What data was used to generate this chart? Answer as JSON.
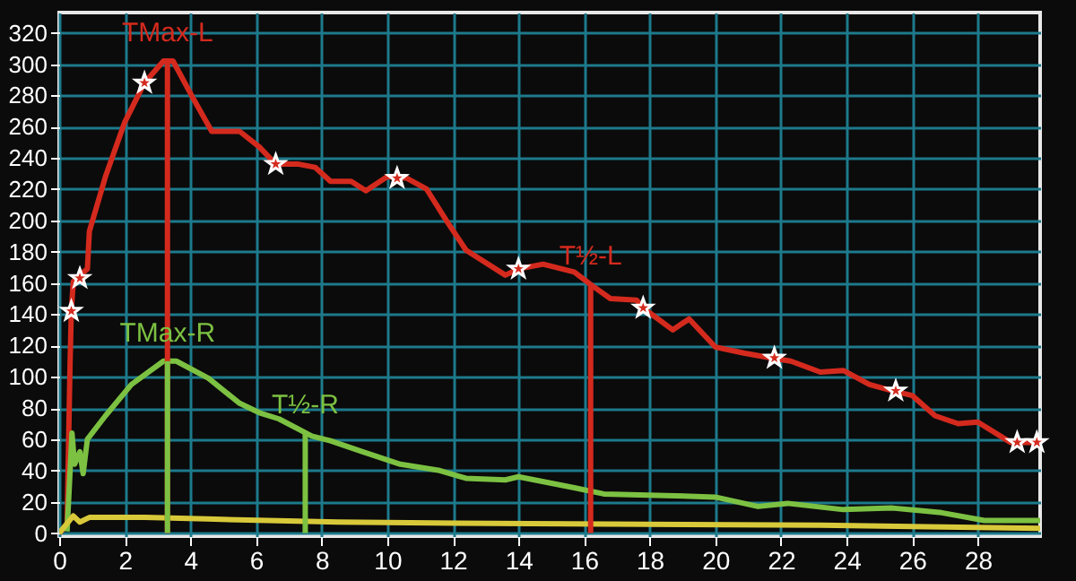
{
  "chart_data": {
    "type": "line",
    "xlim": [
      0,
      29.9
    ],
    "ylim": [
      -2,
      333
    ],
    "xticks": [
      0,
      2,
      4,
      6,
      8,
      10,
      12,
      14,
      16,
      18,
      20,
      22,
      24,
      26,
      28
    ],
    "yticks": [
      0,
      20,
      40,
      60,
      80,
      100,
      120,
      140,
      160,
      180,
      200,
      220,
      240,
      260,
      280,
      300,
      320
    ],
    "grid": true,
    "line_style": "solid",
    "marker": "none",
    "series": [
      {
        "color": "#d42a1e",
        "x": [
          0,
          0.24,
          0.33,
          0.37,
          0.43,
          0.63,
          0.86,
          0.92,
          1.41,
          2,
          2.6,
          3.18,
          3.47,
          4.06,
          4.65,
          5.5,
          6.1,
          6.6,
          7.3,
          7.8,
          8.27,
          8.9,
          9.35,
          10.0,
          10.6,
          11.2,
          11.8,
          12.4,
          13.6,
          14.0,
          14.75,
          15.7,
          16.2,
          16.8,
          17.6,
          17.8,
          18.7,
          19.2,
          20,
          20.9,
          21.7,
          22.3,
          23.2,
          23.9,
          24.7,
          25.4,
          26,
          26.7,
          27.4,
          28,
          29,
          29.8
        ],
        "values": [
          0,
          5,
          107,
          142,
          161,
          165,
          169,
          193,
          228,
          263,
          288,
          302,
          302,
          279,
          257,
          257,
          247,
          236,
          236,
          234,
          225,
          225,
          219,
          228,
          227,
          220,
          200,
          181,
          165,
          169,
          172,
          167,
          159,
          150,
          149,
          144,
          130,
          137,
          119,
          115,
          112,
          110,
          103,
          104,
          95,
          91,
          88,
          75,
          70,
          71,
          58,
          58
        ]
      },
      {
        "color": "#7cc142",
        "x": [
          0.24,
          0.39,
          0.47,
          0.63,
          0.73,
          0.86,
          1.41,
          2.2,
          3.18,
          3.57,
          4.55,
          5.5,
          6.1,
          6.7,
          7.7,
          8.27,
          9.25,
          10.4,
          11.6,
          12.4,
          13.6,
          14.0,
          15.7,
          16.6,
          18.5,
          20,
          21.3,
          22.2,
          23.9,
          25.4,
          26.9,
          28.2,
          29.9
        ],
        "values": [
          1,
          64,
          44,
          52,
          38,
          60,
          75,
          95,
          110,
          110,
          99,
          83,
          77,
          73,
          62,
          59,
          52,
          44,
          40,
          35,
          34,
          36,
          29,
          25,
          24,
          23,
          17,
          19,
          15,
          16,
          13,
          8,
          8
        ]
      },
      {
        "color": "#d8c93a",
        "x": [
          0,
          0.43,
          0.63,
          0.92,
          2.6,
          4.5,
          8.5,
          14.35,
          23.2,
          29.9
        ],
        "values": [
          0,
          11,
          7,
          10,
          10,
          9,
          7,
          6,
          5,
          3
        ]
      },
      {
        "type": "scatter",
        "marker": "star",
        "color": "#d42a1e",
        "x": [
          0.37,
          0.63,
          2.6,
          6.6,
          10.3,
          14.0,
          17.8,
          21.8,
          25.5,
          29.2,
          29.8
        ],
        "values": [
          142,
          163,
          288,
          236,
          227,
          169,
          144,
          112,
          91,
          58,
          58
        ]
      }
    ],
    "ref_lines": [
      {
        "axis": "x",
        "value": 3.3,
        "label": "TMax-L",
        "color": "#d42a1e"
      },
      {
        "axis": "x",
        "value": 3.3,
        "label": "TMax-R",
        "color": "#7cc142"
      },
      {
        "axis": "x",
        "value": 7.5,
        "label": "T½-R",
        "color": "#7cc142"
      },
      {
        "axis": "x",
        "value": 16.2,
        "label": "T½-L",
        "color": "#d42a1e"
      }
    ]
  }
}
